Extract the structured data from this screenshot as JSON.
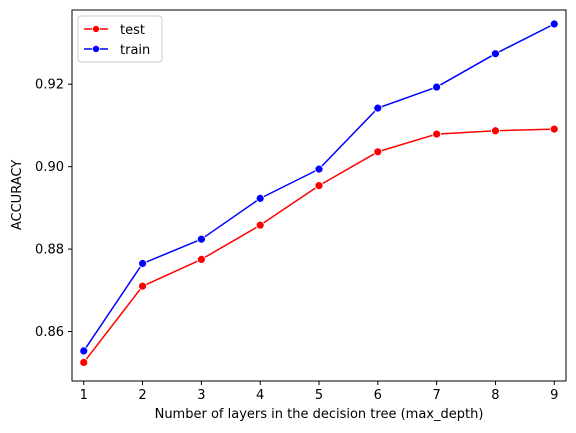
{
  "chart_data": {
    "type": "line",
    "title": "",
    "xlabel": "Number of layers in the decision tree (max_depth)",
    "ylabel": "ACCURACY",
    "x": [
      1,
      2,
      3,
      4,
      5,
      6,
      7,
      8,
      9
    ],
    "xticks": [
      "1",
      "2",
      "3",
      "4",
      "5",
      "6",
      "7",
      "8",
      "9"
    ],
    "yticks": [
      0.86,
      0.88,
      0.9,
      0.92
    ],
    "ytick_labels": [
      "0.86",
      "0.88",
      "0.90",
      "0.92"
    ],
    "xlim": [
      0.8,
      9.2
    ],
    "ylim": [
      0.848,
      0.938
    ],
    "grid": false,
    "legend_position": "top-left",
    "series": [
      {
        "name": "test",
        "color": "#ff0000",
        "marker": "circle",
        "values": [
          0.8525,
          0.871,
          0.8775,
          0.8858,
          0.8954,
          0.9036,
          0.9079,
          0.9087,
          0.9091
        ]
      },
      {
        "name": "train",
        "color": "#0000ff",
        "marker": "circle",
        "values": [
          0.8553,
          0.8765,
          0.8824,
          0.8923,
          0.8994,
          0.9142,
          0.9193,
          0.9274,
          0.9346
        ]
      }
    ]
  }
}
